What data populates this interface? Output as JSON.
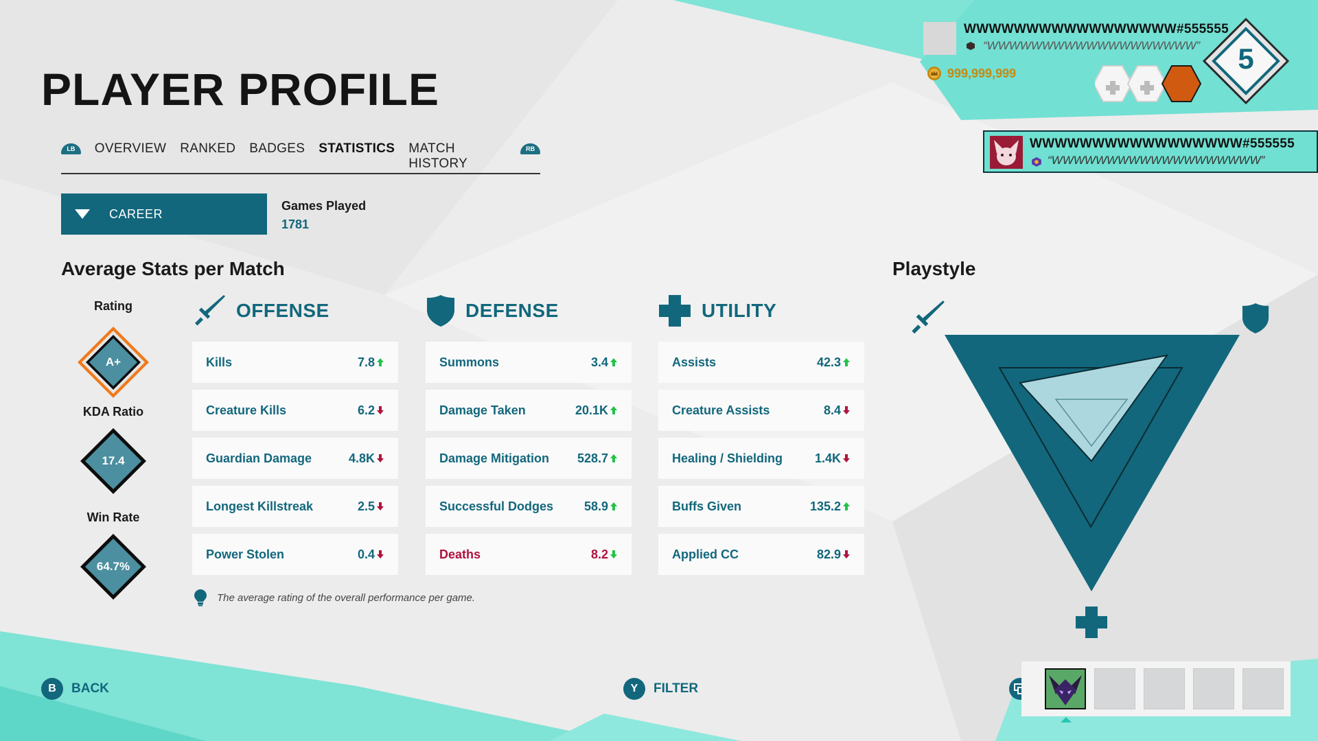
{
  "page": {
    "title": "PLAYER PROFILE"
  },
  "tabs": {
    "left_bumper": "LB",
    "right_bumper": "RB",
    "items": [
      {
        "label": "OVERVIEW",
        "active": false
      },
      {
        "label": "RANKED",
        "active": false
      },
      {
        "label": "BADGES",
        "active": false
      },
      {
        "label": "STATISTICS",
        "active": true
      },
      {
        "label": "MATCH HISTORY",
        "active": false
      }
    ]
  },
  "filter": {
    "selected": "CAREER"
  },
  "games_played": {
    "label": "Games Played",
    "value": "1781"
  },
  "average_stats": {
    "title": "Average Stats per Match",
    "ratings": [
      {
        "label": "Rating",
        "value": "A+"
      },
      {
        "label": "KDA Ratio",
        "value": "17.4"
      },
      {
        "label": "Win Rate",
        "value": "64.7%"
      }
    ],
    "offense": {
      "title": "OFFENSE",
      "rows": [
        {
          "name": "Kills",
          "value": "7.8",
          "trend": "up",
          "negative": false
        },
        {
          "name": "Creature Kills",
          "value": "6.2",
          "trend": "down",
          "negative": false
        },
        {
          "name": "Guardian Damage",
          "value": "4.8K",
          "trend": "down",
          "negative": false
        },
        {
          "name": "Longest Killstreak",
          "value": "2.5",
          "trend": "down",
          "negative": false
        },
        {
          "name": "Power Stolen",
          "value": "0.4",
          "trend": "down",
          "negative": false
        }
      ]
    },
    "defense": {
      "title": "DEFENSE",
      "rows": [
        {
          "name": "Summons",
          "value": "3.4",
          "trend": "up",
          "negative": false
        },
        {
          "name": "Damage Taken",
          "value": "20.1K",
          "trend": "up",
          "negative": false
        },
        {
          "name": "Damage Mitigation",
          "value": "528.7",
          "trend": "up",
          "negative": false
        },
        {
          "name": "Successful Dodges",
          "value": "58.9",
          "trend": "up",
          "negative": false
        },
        {
          "name": "Deaths",
          "value": "8.2",
          "trend": "down-good",
          "negative": true
        }
      ]
    },
    "utility": {
      "title": "UTILITY",
      "rows": [
        {
          "name": "Assists",
          "value": "42.3",
          "trend": "up",
          "negative": false
        },
        {
          "name": "Creature Assists",
          "value": "8.4",
          "trend": "down",
          "negative": false
        },
        {
          "name": "Healing / Shielding",
          "value": "1.4K",
          "trend": "down",
          "negative": false
        },
        {
          "name": "Buffs Given",
          "value": "135.2",
          "trend": "up",
          "negative": false
        },
        {
          "name": "Applied CC",
          "value": "82.9",
          "trend": "down",
          "negative": false
        }
      ]
    },
    "hint": "The average rating of the overall performance per game."
  },
  "playstyle": {
    "title": "Playstyle",
    "icons": [
      "sword-icon",
      "shield-icon",
      "plus-icon"
    ]
  },
  "profile": {
    "name": "WWWWWWWWWWWWWWWWW#555555",
    "quote": "“WWWWWWWWWWWWWWWWWWW”",
    "coins": "999,999,999",
    "level": "5"
  },
  "friend": {
    "name": "WWWWWWWWWWWWWWWWW#555555",
    "quote": "“WWWWWWWWWWWWWWWWWWW”"
  },
  "buttons": {
    "back": {
      "glyph": "B",
      "label": "BACK"
    },
    "filter": {
      "glyph": "Y",
      "label": "FILTER"
    }
  },
  "colors": {
    "primary": "#12677c",
    "negative": "#b0123d",
    "trend_up": "#22c24a",
    "accent_teal": "#6fe0d1",
    "coin": "#c58a12"
  }
}
